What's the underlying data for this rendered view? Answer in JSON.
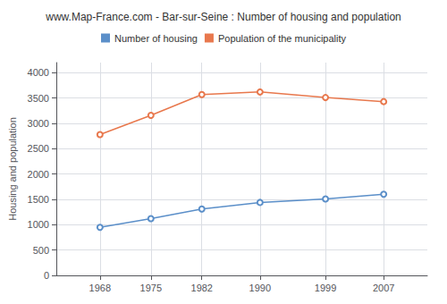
{
  "chart_data": {
    "type": "line",
    "title": "www.Map-France.com - Bar-sur-Seine : Number of housing and population",
    "x": [
      1968,
      1975,
      1982,
      1990,
      1999,
      2007
    ],
    "series": [
      {
        "name": "Population of the municipality",
        "color": "#e8784d",
        "values": [
          2780,
          3160,
          3570,
          3620,
          3510,
          3430
        ]
      },
      {
        "name": "Number of housing",
        "color": "#5b8fc9",
        "values": [
          950,
          1120,
          1310,
          1440,
          1510,
          1600
        ]
      }
    ],
    "ylabel": "Housing and population",
    "xlim": [
      1962,
      2013
    ],
    "xticks": [
      1968,
      1975,
      1982,
      1990,
      1999,
      2007
    ],
    "ylim": [
      0,
      4200
    ],
    "yticks": [
      0,
      500,
      1000,
      1500,
      2000,
      2500,
      3000,
      3500,
      4000
    ],
    "grid": true,
    "legend": "top",
    "marker": "circle"
  }
}
